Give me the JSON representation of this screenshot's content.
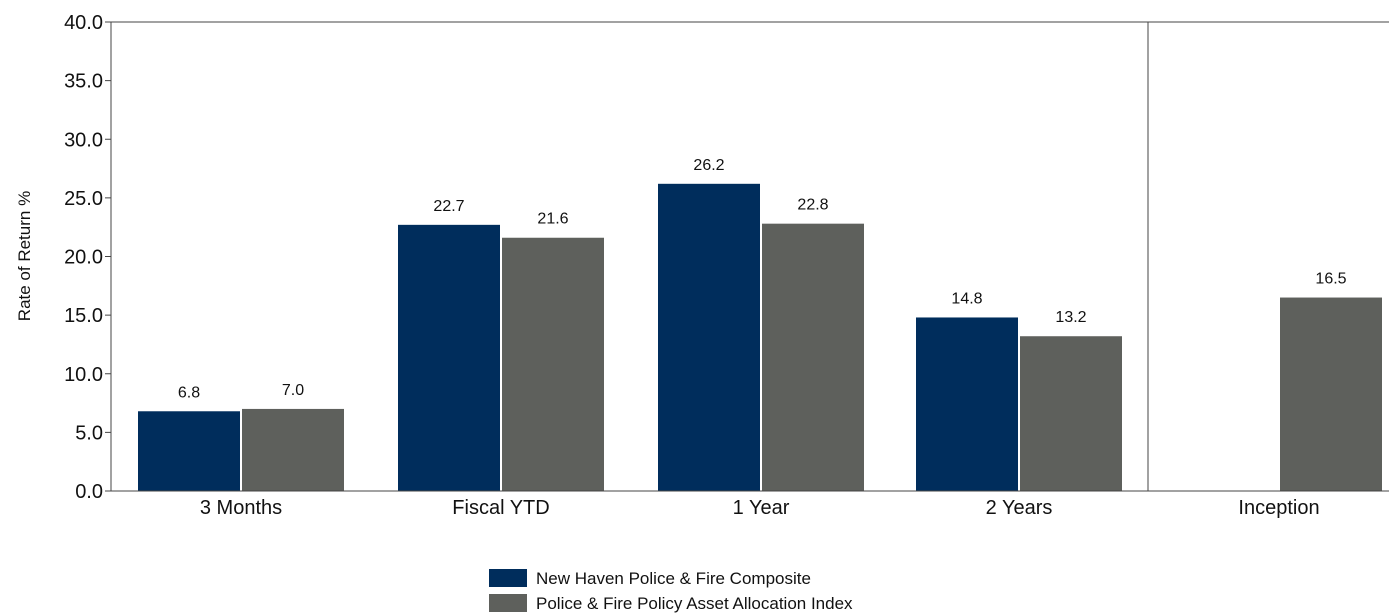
{
  "chart_data": {
    "type": "bar",
    "ylabel": "Rate of Return %",
    "ylim": [
      0,
      40
    ],
    "yticks": [
      "0.0",
      "5.0",
      "10.0",
      "15.0",
      "20.0",
      "25.0",
      "30.0",
      "35.0",
      "40.0"
    ],
    "categories": [
      "3 Months",
      "Fiscal YTD",
      "1 Year",
      "2 Years",
      "Inception"
    ],
    "series": [
      {
        "name": "New Haven Police & Fire Composite",
        "color": "#002d5c",
        "values": [
          6.8,
          22.7,
          26.2,
          14.8,
          null
        ],
        "labels": [
          "6.8",
          "22.7",
          "26.2",
          "14.8",
          ""
        ]
      },
      {
        "name": "Police & Fire Policy Asset Allocation Index",
        "color": "#5e605c",
        "values": [
          7.0,
          21.6,
          22.8,
          13.2,
          16.5
        ],
        "labels": [
          "7.0",
          "21.6",
          "22.8",
          "13.2",
          "16.5"
        ]
      }
    ],
    "grid": false,
    "legend_position": "bottom-center",
    "separator_before_category": "Inception"
  }
}
